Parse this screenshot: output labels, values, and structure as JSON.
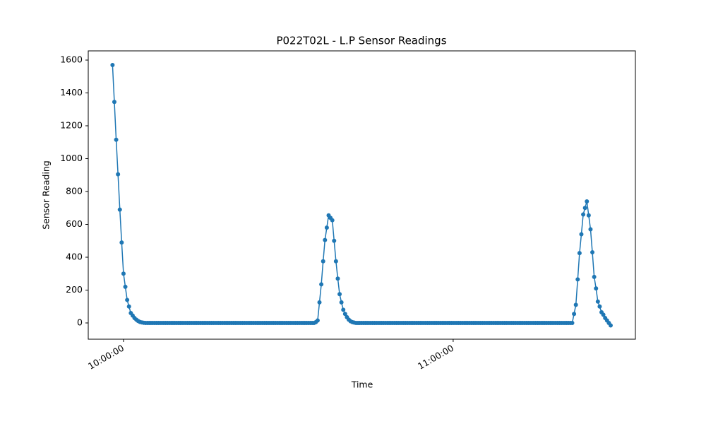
{
  "chart_data": {
    "type": "line",
    "title": "P022T02L - L.P Sensor Readings",
    "x_label": "Time",
    "y_label": "Sensor Reading",
    "color": "#1f77b4",
    "x": [
      "09:58:00",
      "09:58:20",
      "09:58:40",
      "09:59:00",
      "09:59:20",
      "09:59:40",
      "10:00:00",
      "10:00:20",
      "10:00:40",
      "10:01:00",
      "10:01:20",
      "10:01:40",
      "10:02:00",
      "10:02:20",
      "10:02:40",
      "10:03:00",
      "10:03:20",
      "10:03:40",
      "10:04:00",
      "10:04:20",
      "10:04:40",
      "10:05:00",
      "10:05:20",
      "10:05:40",
      "10:06:00",
      "10:06:20",
      "10:06:40",
      "10:07:00",
      "10:07:20",
      "10:07:40",
      "10:08:00",
      "10:08:20",
      "10:08:40",
      "10:09:00",
      "10:09:20",
      "10:09:40",
      "10:10:00",
      "10:10:20",
      "10:10:40",
      "10:11:00",
      "10:11:20",
      "10:11:40",
      "10:12:00",
      "10:12:20",
      "10:12:40",
      "10:13:00",
      "10:13:20",
      "10:13:40",
      "10:14:00",
      "10:14:20",
      "10:14:40",
      "10:15:00",
      "10:15:20",
      "10:15:40",
      "10:16:00",
      "10:16:20",
      "10:16:40",
      "10:17:00",
      "10:17:20",
      "10:17:40",
      "10:18:00",
      "10:18:20",
      "10:18:40",
      "10:19:00",
      "10:19:20",
      "10:19:40",
      "10:20:00",
      "10:20:20",
      "10:20:40",
      "10:21:00",
      "10:21:20",
      "10:21:40",
      "10:22:00",
      "10:22:20",
      "10:22:40",
      "10:23:00",
      "10:23:20",
      "10:23:40",
      "10:24:00",
      "10:24:20",
      "10:24:40",
      "10:25:00",
      "10:25:20",
      "10:25:40",
      "10:26:00",
      "10:26:20",
      "10:26:40",
      "10:27:00",
      "10:27:20",
      "10:27:40",
      "10:28:00",
      "10:28:20",
      "10:28:40",
      "10:29:00",
      "10:29:20",
      "10:29:40",
      "10:30:00",
      "10:30:20",
      "10:30:40",
      "10:31:00",
      "10:31:20",
      "10:31:40",
      "10:32:00",
      "10:32:20",
      "10:32:40",
      "10:33:00",
      "10:33:20",
      "10:33:40",
      "10:34:00",
      "10:34:20",
      "10:34:40",
      "10:35:00",
      "10:35:20",
      "10:35:40",
      "10:36:00",
      "10:36:20",
      "10:36:40",
      "10:37:00",
      "10:37:20",
      "10:37:40",
      "10:38:00",
      "10:38:20",
      "10:38:40",
      "10:39:00",
      "10:39:20",
      "10:39:40",
      "10:40:00",
      "10:40:20",
      "10:40:40",
      "10:41:00",
      "10:41:20",
      "10:41:40",
      "10:42:00",
      "10:42:20",
      "10:42:40",
      "10:43:00",
      "10:43:20",
      "10:43:40",
      "10:44:00",
      "10:44:20",
      "10:44:40",
      "10:45:00",
      "10:45:20",
      "10:45:40",
      "10:46:00",
      "10:46:20",
      "10:46:40",
      "10:47:00",
      "10:47:20",
      "10:47:40",
      "10:48:00",
      "10:48:20",
      "10:48:40",
      "10:49:00",
      "10:49:20",
      "10:49:40",
      "10:50:00",
      "10:50:20",
      "10:50:40",
      "10:51:00",
      "10:51:20",
      "10:51:40",
      "10:52:00",
      "10:52:20",
      "10:52:40",
      "10:53:00",
      "10:53:20",
      "10:53:40",
      "10:54:00",
      "10:54:20",
      "10:54:40",
      "10:55:00",
      "10:55:20",
      "10:55:40",
      "10:56:00",
      "10:56:20",
      "10:56:40",
      "10:57:00",
      "10:57:20",
      "10:57:40",
      "10:58:00",
      "10:58:20",
      "10:58:40",
      "10:59:00",
      "10:59:20",
      "10:59:40",
      "11:00:00",
      "11:00:20",
      "11:00:40",
      "11:01:00",
      "11:01:20",
      "11:01:40",
      "11:02:00",
      "11:02:20",
      "11:02:40",
      "11:03:00",
      "11:03:20",
      "11:03:40",
      "11:04:00",
      "11:04:20",
      "11:04:40",
      "11:05:00",
      "11:05:20",
      "11:05:40",
      "11:06:00",
      "11:06:20",
      "11:06:40",
      "11:07:00",
      "11:07:20",
      "11:07:40",
      "11:08:00",
      "11:08:20",
      "11:08:40",
      "11:09:00",
      "11:09:20",
      "11:09:40",
      "11:10:00",
      "11:10:20",
      "11:10:40",
      "11:11:00",
      "11:11:20",
      "11:11:40",
      "11:12:00",
      "11:12:20",
      "11:12:40",
      "11:13:00",
      "11:13:20",
      "11:13:40",
      "11:14:00",
      "11:14:20",
      "11:14:40",
      "11:15:00",
      "11:15:20",
      "11:15:40",
      "11:16:00",
      "11:16:20",
      "11:16:40",
      "11:17:00",
      "11:17:20",
      "11:17:40",
      "11:18:00",
      "11:18:20",
      "11:18:40",
      "11:19:00",
      "11:19:20",
      "11:19:40",
      "11:20:00",
      "11:20:20",
      "11:20:40",
      "11:21:00",
      "11:21:20",
      "11:21:40",
      "11:22:00",
      "11:22:20",
      "11:22:40",
      "11:23:00",
      "11:23:20",
      "11:23:40",
      "11:24:00",
      "11:24:20",
      "11:24:40",
      "11:25:00",
      "11:25:20",
      "11:25:40",
      "11:26:00",
      "11:26:20",
      "11:26:40",
      "11:27:00",
      "11:27:20",
      "11:27:40",
      "11:28:00",
      "11:28:20",
      "11:28:40"
    ],
    "values": [
      1570,
      1345,
      1115,
      905,
      690,
      490,
      300,
      220,
      140,
      100,
      60,
      45,
      30,
      20,
      12,
      6,
      3,
      1,
      0,
      0,
      0,
      0,
      0,
      0,
      0,
      0,
      0,
      0,
      0,
      0,
      0,
      0,
      0,
      0,
      0,
      0,
      0,
      0,
      0,
      0,
      0,
      0,
      0,
      0,
      0,
      0,
      0,
      0,
      0,
      0,
      0,
      0,
      0,
      0,
      0,
      0,
      0,
      0,
      0,
      0,
      0,
      0,
      0,
      0,
      0,
      0,
      0,
      0,
      0,
      0,
      0,
      0,
      0,
      0,
      0,
      0,
      0,
      0,
      0,
      0,
      0,
      0,
      0,
      0,
      0,
      0,
      0,
      0,
      0,
      0,
      0,
      0,
      0,
      0,
      0,
      0,
      0,
      0,
      0,
      0,
      0,
      0,
      0,
      0,
      0,
      0,
      0,
      0,
      0,
      0,
      0,
      5,
      15,
      125,
      235,
      375,
      505,
      580,
      655,
      640,
      625,
      500,
      375,
      270,
      175,
      125,
      80,
      55,
      35,
      20,
      10,
      5,
      2,
      0,
      0,
      0,
      0,
      0,
      0,
      0,
      0,
      0,
      0,
      0,
      0,
      0,
      0,
      0,
      0,
      0,
      0,
      0,
      0,
      0,
      0,
      0,
      0,
      0,
      0,
      0,
      0,
      0,
      0,
      0,
      0,
      0,
      0,
      0,
      0,
      0,
      0,
      0,
      0,
      0,
      0,
      0,
      0,
      0,
      0,
      0,
      0,
      0,
      0,
      0,
      0,
      0,
      0,
      0,
      0,
      0,
      0,
      0,
      0,
      0,
      0,
      0,
      0,
      0,
      0,
      0,
      0,
      0,
      0,
      0,
      0,
      0,
      0,
      0,
      0,
      0,
      0,
      0,
      0,
      0,
      0,
      0,
      0,
      0,
      0,
      0,
      0,
      0,
      0,
      0,
      0,
      0,
      0,
      0,
      0,
      0,
      0,
      0,
      0,
      0,
      0,
      0,
      0,
      0,
      0,
      0,
      0,
      0,
      0,
      0,
      0,
      0,
      0,
      0,
      0,
      0,
      0,
      0,
      55,
      110,
      265,
      425,
      540,
      660,
      700,
      740,
      655,
      570,
      430,
      280,
      210,
      130,
      100,
      65,
      50,
      30,
      15,
      0,
      -15
    ],
    "xlim": [
      "09:53:35",
      "11:33:10"
    ],
    "xticks": [
      "10:00:00",
      "11:00:00"
    ],
    "ylim": [
      -99,
      1656
    ],
    "yticks": [
      0,
      200,
      400,
      600,
      800,
      1000,
      1200,
      1400,
      1600
    ]
  }
}
